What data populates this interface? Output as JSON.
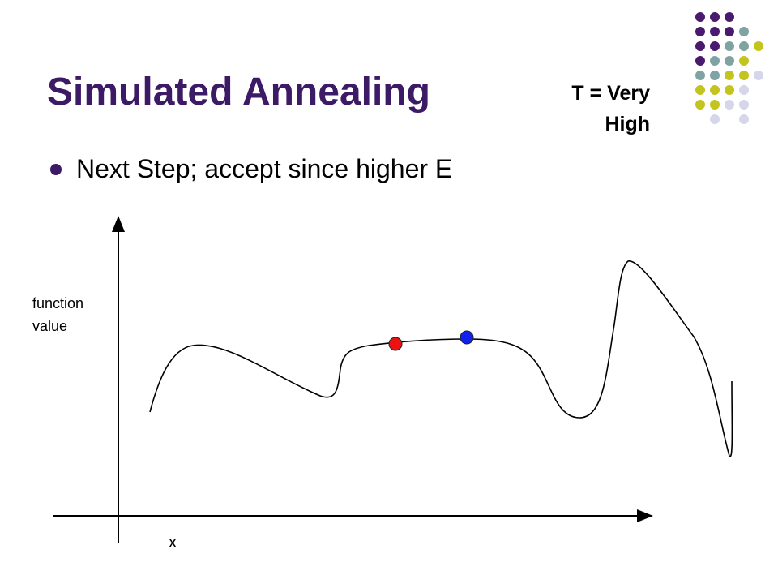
{
  "slide": {
    "title": "Simulated Annealing",
    "temperature_line1": "T = Very",
    "temperature_line2": "High",
    "bullet": "Next Step; accept since higher E"
  },
  "diagram": {
    "y_axis_label_line1": "function",
    "y_axis_label_line2": "value",
    "x_axis_label": "x",
    "previous_point_color": "#ee1111",
    "current_point_color": "#1122ee"
  },
  "decoration": {
    "dot_colors": [
      "#4a1a6e",
      "#7fa3a3",
      "#c4c41f",
      "#d6d6ea"
    ]
  }
}
